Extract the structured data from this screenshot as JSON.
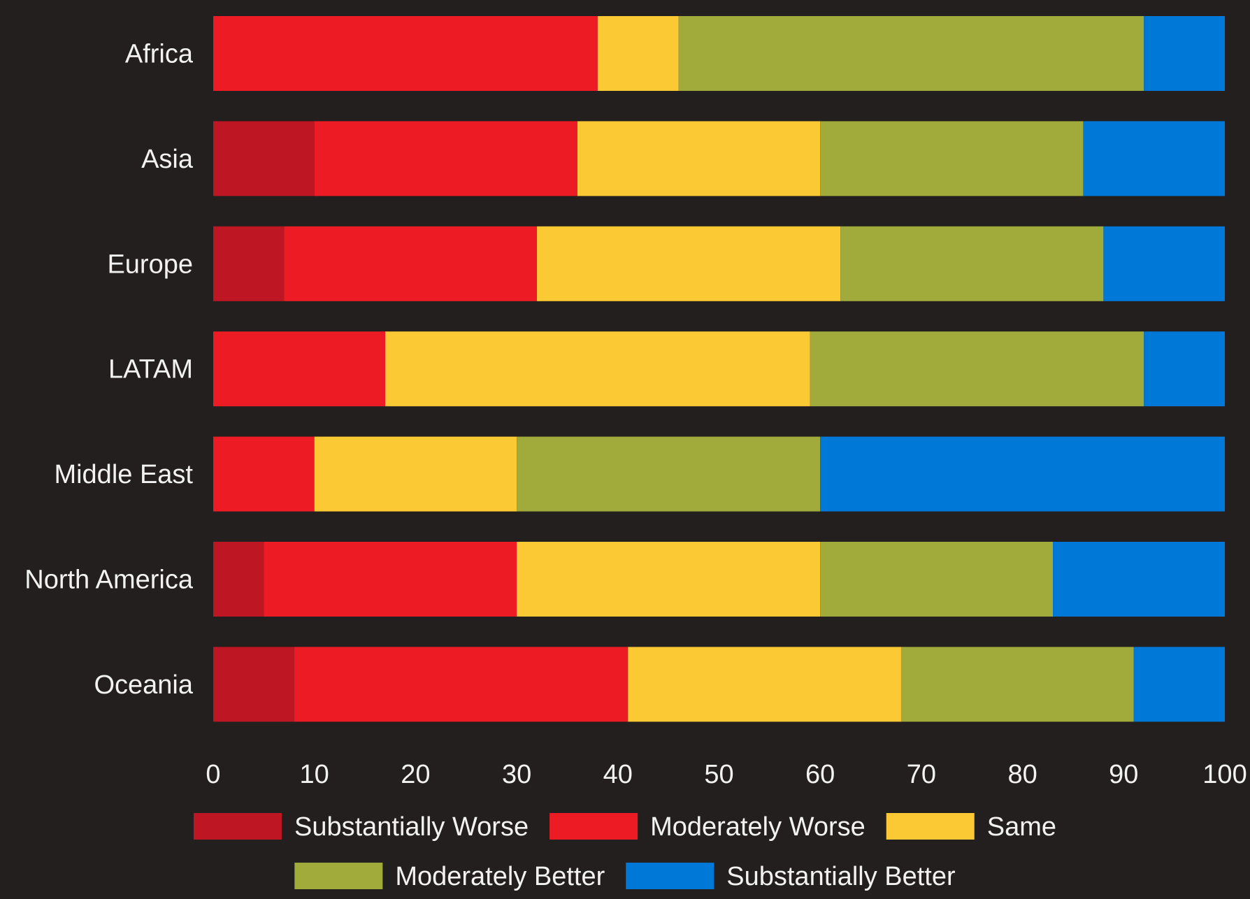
{
  "chart_data": {
    "type": "bar",
    "orientation": "horizontal",
    "stacked": true,
    "categories": [
      "Africa",
      "Asia",
      "Europe",
      "LATAM",
      "Middle East",
      "North America",
      "Oceania"
    ],
    "series": [
      {
        "name": "Substantially Worse",
        "color": "#be1622",
        "values": [
          0,
          10,
          7,
          0,
          0,
          5,
          8
        ]
      },
      {
        "name": "Moderately Worse",
        "color": "#ed1c24",
        "values": [
          38,
          26,
          25,
          17,
          10,
          25,
          33
        ]
      },
      {
        "name": "Same",
        "color": "#fbc934",
        "values": [
          8,
          24,
          30,
          42,
          20,
          30,
          27
        ]
      },
      {
        "name": "Moderately Better",
        "color": "#a1ab3b",
        "values": [
          46,
          26,
          26,
          33,
          30,
          23,
          23
        ]
      },
      {
        "name": "Substantially Better",
        "color": "#0078d7",
        "values": [
          8,
          14,
          12,
          8,
          40,
          17,
          9
        ]
      }
    ],
    "xlim": [
      0,
      100
    ],
    "xticks": [
      "0",
      "10",
      "20",
      "30",
      "40",
      "50",
      "60",
      "70",
      "80",
      "90",
      "100"
    ],
    "grid": false,
    "legend_position": "bottom"
  }
}
